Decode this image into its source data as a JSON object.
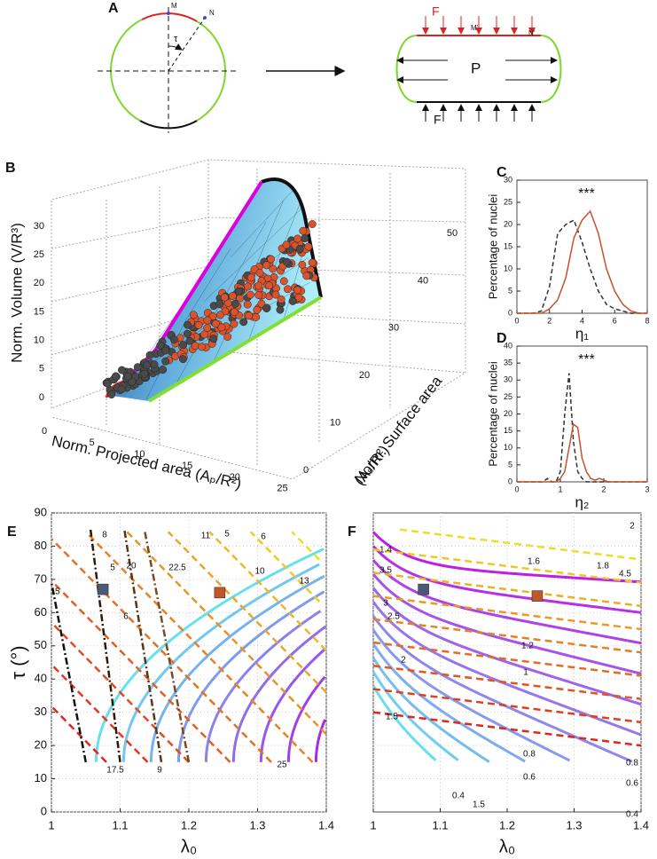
{
  "panel_a": {
    "label": "A",
    "point_m": "M",
    "point_n": "N",
    "angle": "τ",
    "force_top": "F",
    "force_bottom": "F",
    "point_m2": "M'",
    "point_n2": "N'",
    "pressure": "P"
  },
  "panel_b": {
    "label": "B",
    "zlabel": "Norm. Volume (V/R³)",
    "xlabel": "Norm. Projected area (Aₚ/R²)",
    "ylabel_1": "Norm. Surface area",
    "ylabel_2": "(Aₛ/R²)",
    "zticks": [
      0,
      5,
      10,
      15,
      20,
      25,
      30
    ],
    "xticks": [
      0,
      5,
      10,
      15,
      20,
      25
    ],
    "yticks": [
      0,
      10,
      20,
      30,
      40,
      50
    ]
  },
  "chart_data": [
    {
      "type": "line",
      "panel_label": "C",
      "annotation": "***",
      "xlabel": "η₁",
      "ylabel": "Percentage of nuclei",
      "x": [
        0,
        0.5,
        1,
        1.5,
        2,
        2.5,
        3,
        3.5,
        4,
        4.5,
        5,
        5.5,
        6,
        6.5,
        7,
        7.5,
        8
      ],
      "series": [
        {
          "color": "#333333",
          "line_style": "dashed",
          "values": [
            0,
            0,
            0,
            0.5,
            6,
            18,
            20,
            21,
            16,
            10,
            5,
            2,
            1,
            0.5,
            0,
            0,
            0
          ]
        },
        {
          "color": "#c8502a",
          "line_style": "solid",
          "values": [
            0,
            0,
            0,
            0,
            1,
            3,
            8,
            17,
            21,
            23,
            18,
            10,
            5,
            2,
            0.5,
            0,
            0
          ]
        }
      ],
      "xlim": [
        0,
        8
      ],
      "ylim": [
        0,
        30
      ],
      "xticks": [
        0,
        2,
        4,
        6,
        8
      ],
      "yticks": [
        0,
        5,
        10,
        15,
        20,
        25,
        30
      ]
    },
    {
      "type": "line",
      "panel_label": "D",
      "annotation": "***",
      "xlabel": "η₂",
      "ylabel": "Percentage of nuclei",
      "x": [
        0,
        0.1,
        0.2,
        0.3,
        0.4,
        0.5,
        0.6,
        0.7,
        0.8,
        0.9,
        1,
        1.1,
        1.2,
        1.3,
        1.4,
        1.5,
        1.6,
        1.7,
        1.8,
        1.9,
        2,
        2.1,
        2.2,
        2.3,
        2.4,
        2.5,
        2.6,
        2.7,
        2.8,
        2.9,
        3
      ],
      "series": [
        {
          "color": "#333333",
          "line_style": "dashed",
          "values": [
            0,
            0,
            0,
            0,
            0,
            0,
            0,
            1,
            0,
            0,
            3,
            20,
            32,
            12,
            3,
            1,
            0,
            0,
            0,
            0,
            0,
            0,
            0,
            0,
            0,
            0,
            0,
            0,
            0,
            0,
            0
          ]
        },
        {
          "color": "#c8502a",
          "line_style": "solid",
          "values": [
            0,
            0,
            0,
            0,
            0,
            0,
            0,
            0,
            0,
            0,
            1,
            3,
            10,
            17,
            16,
            7,
            3,
            1,
            0.5,
            1,
            0.5,
            0,
            0,
            0,
            0,
            0,
            0,
            0,
            0,
            0,
            0
          ]
        }
      ],
      "xlim": [
        0,
        3
      ],
      "ylim": [
        0,
        40
      ],
      "xticks": [
        0,
        1,
        2,
        3
      ],
      "yticks": [
        0,
        5,
        10,
        15,
        20,
        25,
        30,
        35,
        40
      ]
    },
    {
      "type": "contour",
      "panel_label": "E",
      "xlabel": "λ₀",
      "ylabel": "τ (°)",
      "grid": true,
      "xlim": [
        1,
        1.4
      ],
      "ylim": [
        0,
        90
      ],
      "xticks": [
        1,
        1.1,
        1.2,
        1.3,
        1.4
      ],
      "yticks": [
        0,
        10,
        20,
        30,
        40,
        50,
        60,
        70,
        80,
        90
      ],
      "markers": [
        {
          "x": 1.075,
          "y": 67,
          "color": "#4a5a78"
        },
        {
          "x": 1.245,
          "y": 66,
          "color": "#c0562a"
        }
      ],
      "contour_labels": [
        15,
        8,
        5,
        20,
        6,
        17.5,
        11,
        22.5,
        9,
        10,
        13,
        25,
        5,
        6
      ]
    },
    {
      "type": "contour",
      "panel_label": "F",
      "xlabel": "λ₀",
      "grid": true,
      "xlim": [
        1,
        1.4
      ],
      "ylim": [
        0,
        90
      ],
      "xticks": [
        1,
        1.1,
        1.2,
        1.3,
        1.4
      ],
      "markers": [
        {
          "x": 1.075,
          "y": 67,
          "color": "#4a5a78"
        },
        {
          "x": 1.245,
          "y": 65,
          "color": "#c0562a"
        }
      ],
      "contour_labels": [
        1.4,
        3.5,
        3,
        2.5,
        2,
        1.5,
        1.6,
        1.2,
        1,
        0.8,
        0.6,
        0.4,
        1.5,
        2,
        1.8,
        4.5,
        0.8,
        0.6,
        0.4
      ]
    }
  ]
}
